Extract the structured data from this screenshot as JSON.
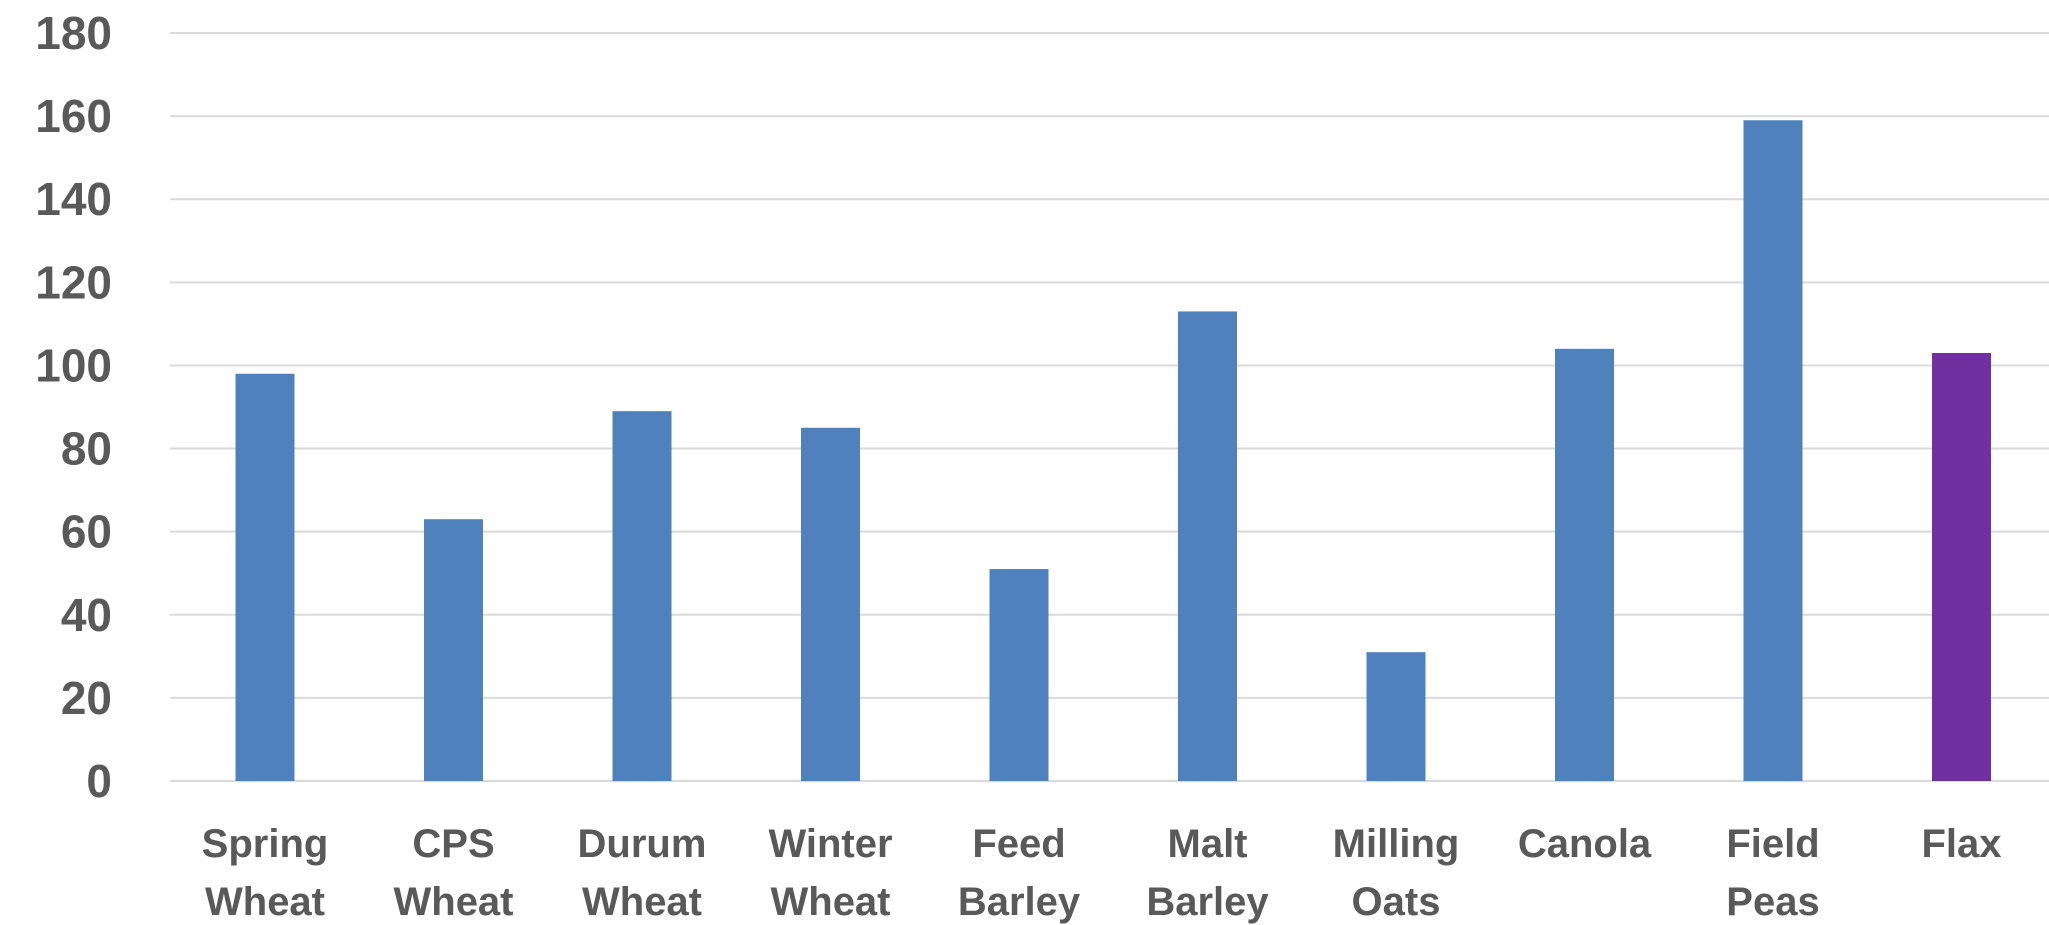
{
  "chart_data": {
    "type": "bar",
    "categories": [
      [
        "Spring",
        "Wheat"
      ],
      [
        "CPS",
        "Wheat"
      ],
      [
        "Durum",
        "Wheat"
      ],
      [
        "Winter",
        "Wheat"
      ],
      [
        "Feed",
        "Barley"
      ],
      [
        "Malt",
        "Barley"
      ],
      [
        "Milling",
        "Oats"
      ],
      [
        "Canola"
      ],
      [
        "Field",
        "Peas"
      ],
      [
        "Flax"
      ]
    ],
    "values": [
      98,
      63,
      89,
      85,
      51,
      113,
      31,
      104,
      159,
      103
    ],
    "bar_colors": [
      "#4f81bd",
      "#4f81bd",
      "#4f81bd",
      "#4f81bd",
      "#4f81bd",
      "#4f81bd",
      "#4f81bd",
      "#4f81bd",
      "#4f81bd",
      "#7030a0"
    ],
    "ylim": [
      0,
      180
    ],
    "yticks": [
      0,
      20,
      40,
      60,
      80,
      100,
      120,
      140,
      160,
      180
    ],
    "grid": true,
    "legend": "none",
    "title": "",
    "xlabel": "",
    "ylabel": ""
  }
}
